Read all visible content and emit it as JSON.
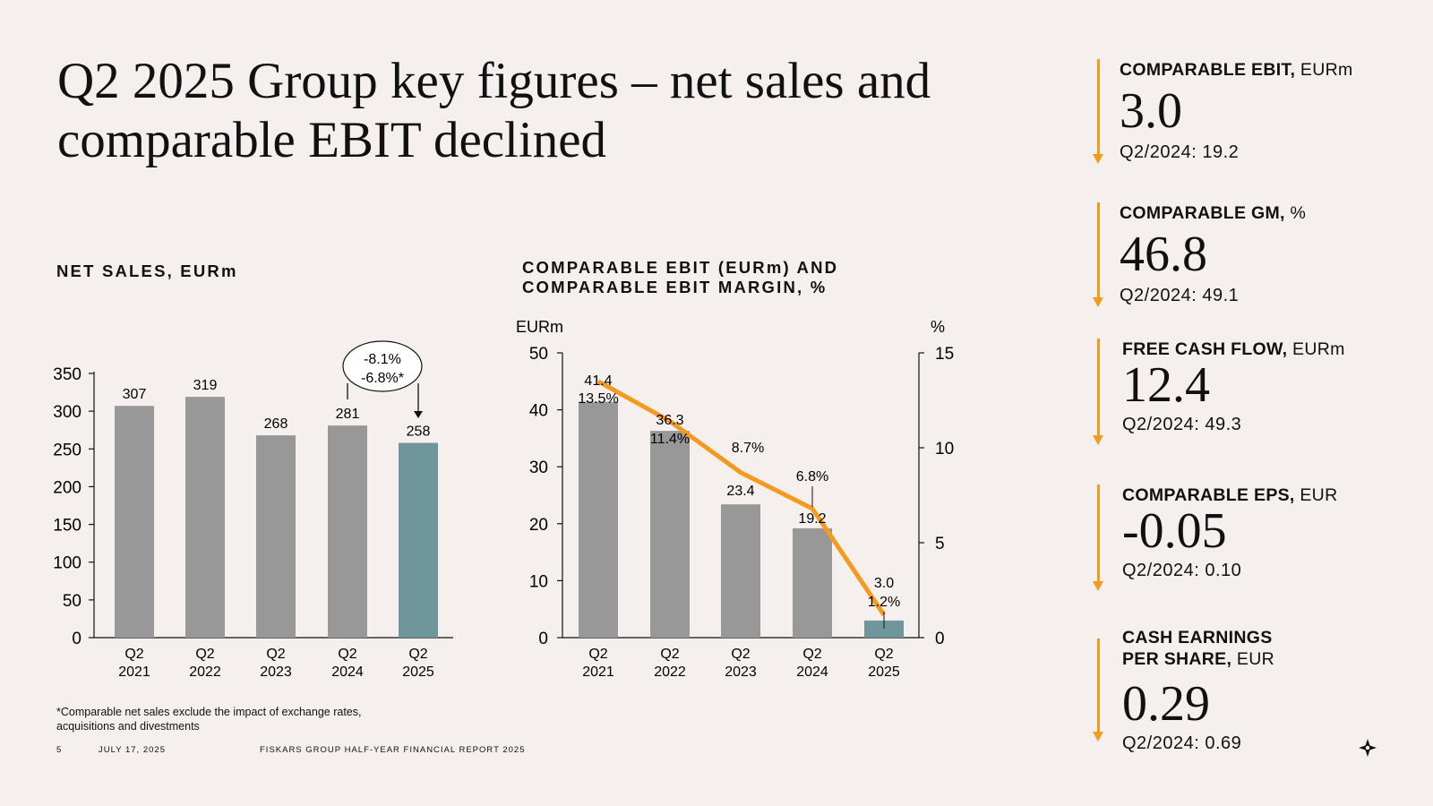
{
  "title": "Q2 2025 Group key figures – net sales and comparable EBIT declined",
  "net_sales": {
    "heading": "NET SALES, EURm",
    "callout": [
      "-8.1%",
      "-6.8%*"
    ],
    "footnote": "*Comparable net sales exclude the impact of exchange rates, acquisitions and divestments"
  },
  "ebit_chart": {
    "heading_line1": "COMPARABLE EBIT (EURm) AND",
    "heading_line2": "COMPARABLE EBIT MARGIN, %",
    "left_unit": "EURm",
    "right_unit": "%"
  },
  "chart_data": [
    {
      "type": "bar",
      "title": "NET SALES, EURm",
      "categories": [
        [
          "Q2",
          "2021"
        ],
        [
          "Q2",
          "2022"
        ],
        [
          "Q2",
          "2023"
        ],
        [
          "Q2",
          "2024"
        ],
        [
          "Q2",
          "2025"
        ]
      ],
      "values": [
        307,
        319,
        268,
        281,
        258
      ],
      "value_labels": [
        "307",
        "319",
        "268",
        "281",
        "258"
      ],
      "highlight_index": 4,
      "ylim": [
        0,
        350
      ],
      "yticks": [
        0,
        50,
        100,
        150,
        200,
        250,
        300,
        350
      ],
      "colors": {
        "bar": "#989898",
        "highlight": "#6e969b"
      }
    },
    {
      "type": "bar+line",
      "title": "COMPARABLE EBIT (EURm) AND COMPARABLE EBIT MARGIN, %",
      "categories": [
        [
          "Q2",
          "2021"
        ],
        [
          "Q2",
          "2022"
        ],
        [
          "Q2",
          "2023"
        ],
        [
          "Q2",
          "2024"
        ],
        [
          "Q2",
          "2025"
        ]
      ],
      "series": [
        {
          "name": "Comparable EBIT (EURm)",
          "axis": "left",
          "values": [
            41.4,
            36.3,
            23.4,
            19.2,
            3.0
          ],
          "labels": [
            "41.4",
            "36.3",
            "23.4",
            "19.2",
            "3.0"
          ]
        },
        {
          "name": "Comparable EBIT margin (%)",
          "axis": "right",
          "values": [
            13.5,
            11.4,
            8.7,
            6.8,
            1.2
          ],
          "labels": [
            "13.5%",
            "11.4%",
            "8.7%",
            "6.8%",
            "1.2%"
          ]
        }
      ],
      "ylim_left": [
        0,
        50
      ],
      "yticks_left": [
        0,
        10,
        20,
        30,
        40,
        50
      ],
      "ylim_right": [
        0,
        15
      ],
      "yticks_right": [
        0,
        5,
        10,
        15
      ],
      "highlight_index": 4,
      "colors": {
        "bar": "#989898",
        "highlight": "#6e969b",
        "line": "#f39a1f"
      }
    }
  ],
  "kpis": [
    {
      "label_bold": "COMPARABLE EBIT,",
      "label_unit": " EURm",
      "value": "3.0",
      "compare": "Q2/2024: 19.2"
    },
    {
      "label_bold": "COMPARABLE GM,",
      "label_unit": " %",
      "value": "46.8",
      "compare": "Q2/2024: 49.1"
    },
    {
      "label_bold": "FREE CASH FLOW,",
      "label_unit": " EURm",
      "value": "12.4",
      "compare": "Q2/2024: 49.3"
    },
    {
      "label_bold": "COMPARABLE EPS,",
      "label_unit": " EUR",
      "value": "-0.05",
      "compare": "Q2/2024: 0.10"
    },
    {
      "label_bold": "CASH  EARNINGS",
      "label_bold2": "PER SHARE,",
      "label_unit": " EUR",
      "value": "0.29",
      "compare": "Q2/2024: 0.69"
    }
  ],
  "footer": {
    "page": "5",
    "date": "JULY 17, 2025",
    "report": "FISKARS GROUP HALF-YEAR FINANCIAL REPORT 2025"
  },
  "colors": {
    "accent": "#f39a1f",
    "bar": "#989898",
    "highlight": "#6e969b",
    "background": "#f5f0ed"
  }
}
